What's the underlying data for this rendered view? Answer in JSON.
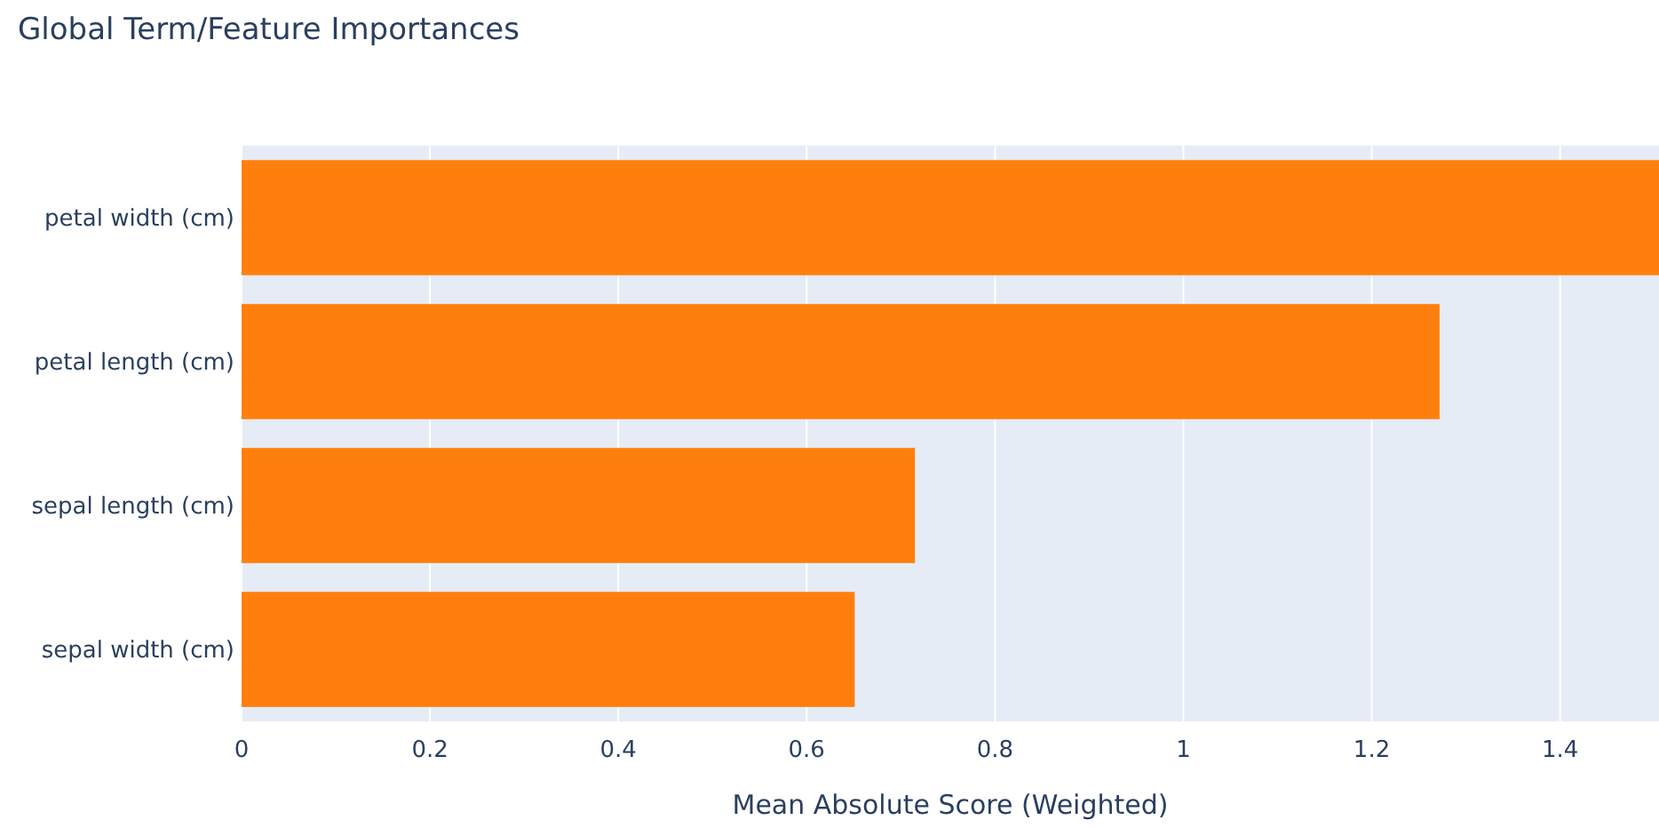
{
  "chart_data": {
    "type": "bar",
    "orientation": "horizontal",
    "title": "Global Term/Feature Importances",
    "xlabel": "Mean Absolute Score (Weighted)",
    "categories": [
      "petal width (cm)",
      "petal length (cm)",
      "sepal length (cm)",
      "sepal width (cm)"
    ],
    "values": [
      1.505,
      1.272,
      0.715,
      0.651
    ],
    "color": "#ff7f0e",
    "xlim": [
      0,
      1.505
    ],
    "xticks": [
      0,
      0.2,
      0.4,
      0.6,
      0.8,
      1,
      1.2,
      1.4
    ],
    "grid": "x"
  }
}
